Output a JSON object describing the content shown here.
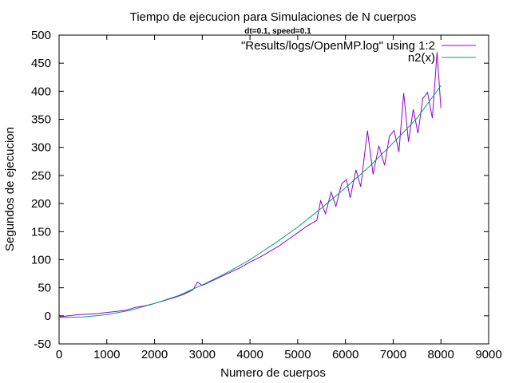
{
  "chart_data": {
    "type": "line",
    "title": "Tiempo de ejecucion para Simulaciones de N cuerpos",
    "subtitle": "dt=0.1, speed=0.1",
    "xlabel": "Numero de cuerpos",
    "ylabel": "Segundos de ejecucion",
    "xlim": [
      0,
      9000
    ],
    "ylim": [
      -50,
      500
    ],
    "xticks": [
      0,
      1000,
      2000,
      3000,
      4000,
      5000,
      6000,
      7000,
      8000,
      9000
    ],
    "yticks": [
      -50,
      0,
      50,
      100,
      150,
      200,
      250,
      300,
      350,
      400,
      450,
      500
    ],
    "grid": false,
    "legend_position": "top-right",
    "series": [
      {
        "name": "\"Results/logs/OpenMP.log\" using 1:2",
        "color": "#9400d3",
        "points": [
          [
            0,
            -2
          ],
          [
            200,
            0
          ],
          [
            400,
            2
          ],
          [
            600,
            3
          ],
          [
            800,
            4
          ],
          [
            1000,
            6
          ],
          [
            1200,
            8
          ],
          [
            1400,
            10
          ],
          [
            1600,
            15
          ],
          [
            1800,
            18
          ],
          [
            2000,
            22
          ],
          [
            2200,
            27
          ],
          [
            2400,
            32
          ],
          [
            2600,
            38
          ],
          [
            2800,
            46
          ],
          [
            2900,
            60
          ],
          [
            3000,
            54
          ],
          [
            3200,
            62
          ],
          [
            3400,
            70
          ],
          [
            3600,
            78
          ],
          [
            3800,
            86
          ],
          [
            4000,
            96
          ],
          [
            4200,
            104
          ],
          [
            4400,
            114
          ],
          [
            4600,
            124
          ],
          [
            4800,
            136
          ],
          [
            5000,
            148
          ],
          [
            5200,
            160
          ],
          [
            5400,
            170
          ],
          [
            5480,
            205
          ],
          [
            5580,
            182
          ],
          [
            5700,
            220
          ],
          [
            5800,
            195
          ],
          [
            5920,
            235
          ],
          [
            6020,
            243
          ],
          [
            6100,
            210
          ],
          [
            6220,
            260
          ],
          [
            6320,
            230
          ],
          [
            6460,
            330
          ],
          [
            6580,
            252
          ],
          [
            6700,
            303
          ],
          [
            6820,
            268
          ],
          [
            6920,
            320
          ],
          [
            7020,
            330
          ],
          [
            7120,
            292
          ],
          [
            7220,
            397
          ],
          [
            7320,
            310
          ],
          [
            7420,
            368
          ],
          [
            7520,
            325
          ],
          [
            7620,
            387
          ],
          [
            7720,
            398
          ],
          [
            7820,
            352
          ],
          [
            7920,
            470
          ],
          [
            8000,
            370
          ]
        ]
      },
      {
        "name": "n2(x)",
        "color": "#009e73",
        "points": [
          [
            0,
            -3
          ],
          [
            500,
            -2
          ],
          [
            1000,
            2
          ],
          [
            1500,
            10
          ],
          [
            2000,
            22
          ],
          [
            2500,
            36
          ],
          [
            3000,
            55
          ],
          [
            3500,
            76
          ],
          [
            4000,
            100
          ],
          [
            4500,
            128
          ],
          [
            5000,
            158
          ],
          [
            5500,
            192
          ],
          [
            6000,
            228
          ],
          [
            6500,
            266
          ],
          [
            7000,
            308
          ],
          [
            7500,
            352
          ],
          [
            8000,
            410
          ]
        ]
      }
    ]
  }
}
